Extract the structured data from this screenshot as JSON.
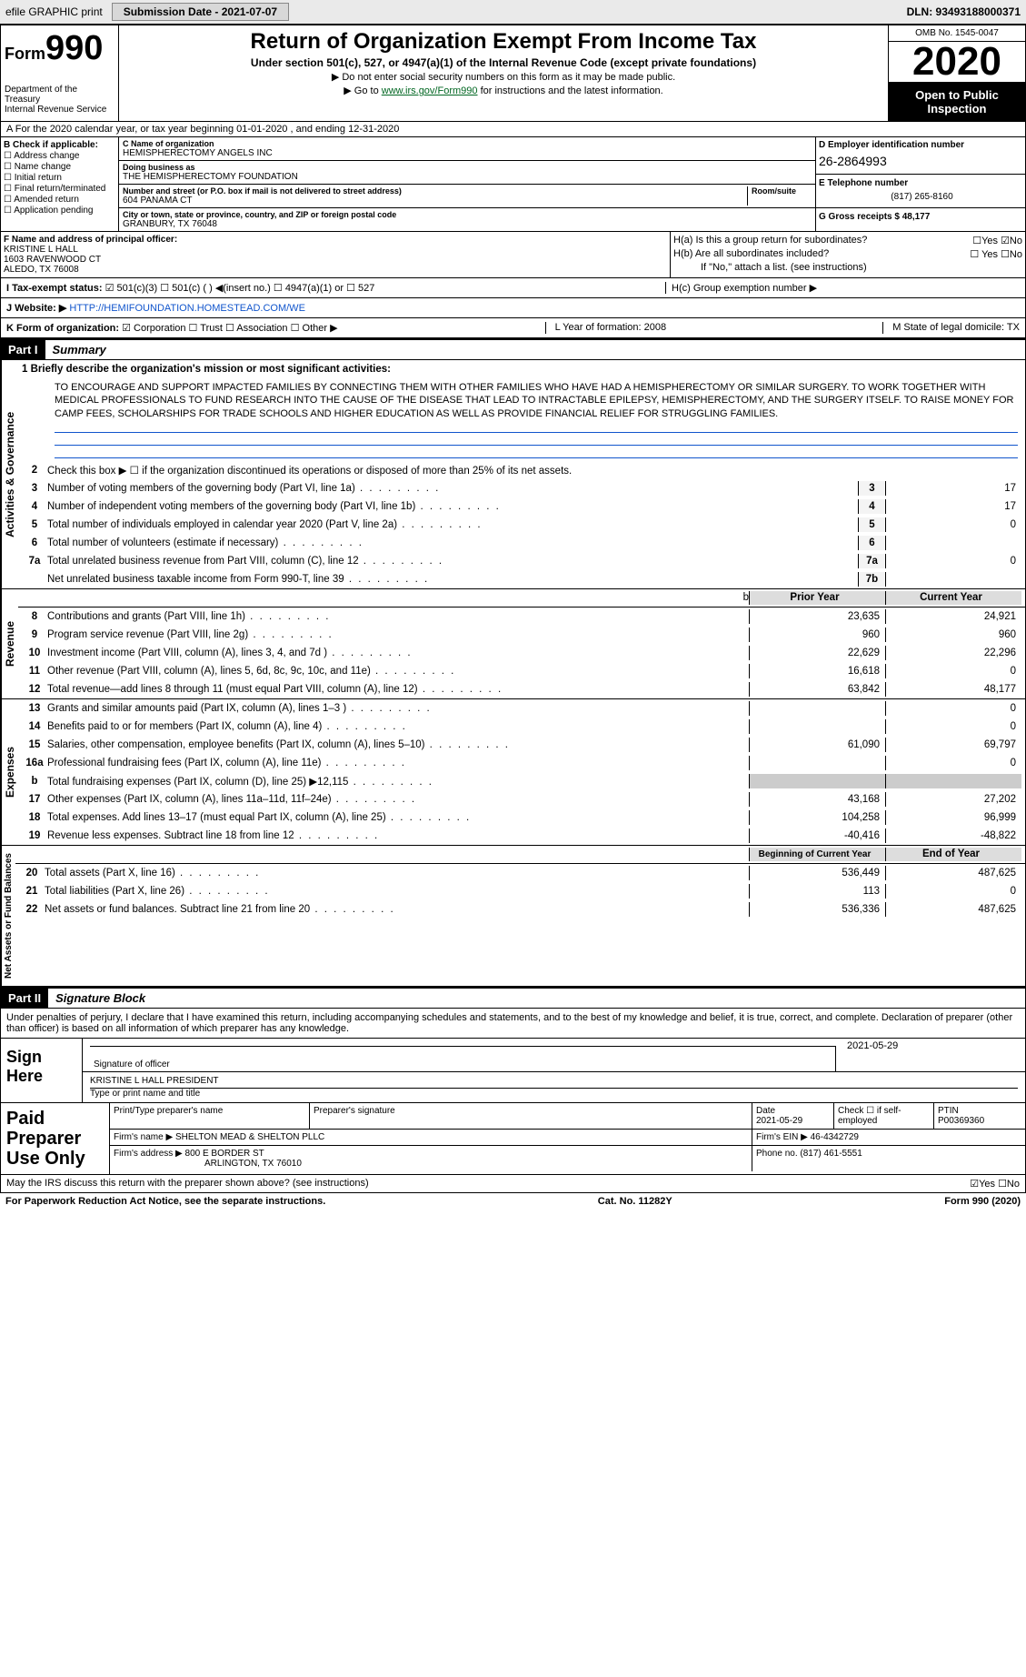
{
  "meta": {
    "top_efile": "efile GRAPHIC print",
    "submission_date_label": "Submission Date - 2021-07-07",
    "dln": "DLN: 93493188000371",
    "form_word": "Form",
    "form_num": "990",
    "dept": "Department of the Treasury",
    "irs": "Internal Revenue Service",
    "title": "Return of Organization Exempt From Income Tax",
    "subtitle": "Under section 501(c), 527, or 4947(a)(1) of the Internal Revenue Code (except private foundations)",
    "note1": "▶ Do not enter social security numbers on this form as it may be made public.",
    "note2_pre": "▶ Go to ",
    "note2_link": "www.irs.gov/Form990",
    "note2_post": " for instructions and the latest information.",
    "omb": "OMB No. 1545-0047",
    "year": "2020",
    "open_public": "Open to Public Inspection"
  },
  "rowA": "A For the 2020 calendar year, or tax year beginning 01-01-2020   , and ending 12-31-2020",
  "B": {
    "header": "B Check if applicable:",
    "items": [
      "☐ Address change",
      "☐ Name change",
      "☐ Initial return",
      "☐ Final return/terminated",
      "☐ Amended return",
      "☐ Application pending"
    ]
  },
  "C": {
    "name_label": "C Name of organization",
    "name": "HEMISPHERECTOMY ANGELS INC",
    "dba_label": "Doing business as",
    "dba": "THE HEMISPHERECTOMY FOUNDATION",
    "street_label": "Number and street (or P.O. box if mail is not delivered to street address)",
    "room_label": "Room/suite",
    "street": "604 PANAMA CT",
    "city_label": "City or town, state or province, country, and ZIP or foreign postal code",
    "city": "GRANBURY, TX  76048"
  },
  "D": {
    "label": "D Employer identification number",
    "value": "26-2864993"
  },
  "E": {
    "label": "E Telephone number",
    "value": "(817) 265-8160"
  },
  "G": {
    "label": "G Gross receipts $ 48,177"
  },
  "F": {
    "label": "F Name and address of principal officer:",
    "name": "KRISTINE L HALL",
    "addr1": "1603 RAVENWOOD CT",
    "addr2": "ALEDO, TX  76008"
  },
  "H": {
    "a_label": "H(a)  Is this a group return for subordinates?",
    "a_val": "☐Yes  ☑No",
    "b_label": "H(b)  Are all subordinates included?",
    "b_val": "☐ Yes ☐No",
    "b_note": "If \"No,\" attach a list. (see instructions)",
    "c_label": "H(c)  Group exemption number ▶"
  },
  "I": {
    "prefix": "I   Tax-exempt status:",
    "opts": "☑ 501(c)(3)    ☐ 501(c) (  ) ◀(insert no.)    ☐ 4947(a)(1) or   ☐ 527"
  },
  "J": {
    "label": "J   Website: ▶",
    "value": "HTTP://HEMIFOUNDATION.HOMESTEAD.COM/WE"
  },
  "K": {
    "label": "K Form of organization:",
    "opts": "☑ Corporation  ☐ Trust  ☐ Association  ☐ Other ▶"
  },
  "L": "L Year of formation: 2008",
  "M": "M State of legal domicile: TX",
  "partI": {
    "hdr": "Part I",
    "title": "Summary",
    "side1": "Activities & Governance",
    "side2": "Revenue",
    "side3": "Expenses",
    "side4": "Net Assets or Fund Balances",
    "line1_label": "1   Briefly describe the organization's mission or most significant activities:",
    "mission": "TO ENCOURAGE AND SUPPORT IMPACTED FAMILIES BY CONNECTING THEM WITH OTHER FAMILIES WHO HAVE HAD A HEMISPHERECTOMY OR SIMILAR SURGERY. TO WORK TOGETHER WITH MEDICAL PROFESSIONALS TO FUND RESEARCH INTO THE CAUSE OF THE DISEASE THAT LEAD TO INTRACTABLE EPILEPSY, HEMISPHERECTOMY, AND THE SURGERY ITSELF. TO RAISE MONEY FOR CAMP FEES, SCHOLARSHIPS FOR TRADE SCHOOLS AND HIGHER EDUCATION AS WELL AS PROVIDE FINANCIAL RELIEF FOR STRUGGLING FAMILIES.",
    "line2": "Check this box ▶ ☐ if the organization discontinued its operations or disposed of more than 25% of its net assets.",
    "gov_lines": [
      {
        "n": "3",
        "t": "Number of voting members of the governing body (Part VI, line 1a)",
        "box": "3",
        "v": "17"
      },
      {
        "n": "4",
        "t": "Number of independent voting members of the governing body (Part VI, line 1b)",
        "box": "4",
        "v": "17"
      },
      {
        "n": "5",
        "t": "Total number of individuals employed in calendar year 2020 (Part V, line 2a)",
        "box": "5",
        "v": "0"
      },
      {
        "n": "6",
        "t": "Total number of volunteers (estimate if necessary)",
        "box": "6",
        "v": ""
      },
      {
        "n": "7a",
        "t": "Total unrelated business revenue from Part VIII, column (C), line 12",
        "box": "7a",
        "v": "0"
      },
      {
        "n": "",
        "t": "Net unrelated business taxable income from Form 990-T, line 39",
        "box": "7b",
        "v": ""
      }
    ],
    "col_hdr_prior": "Prior Year",
    "col_hdr_curr": "Current Year",
    "rev_lines": [
      {
        "n": "8",
        "t": "Contributions and grants (Part VIII, line 1h)",
        "p": "23,635",
        "c": "24,921"
      },
      {
        "n": "9",
        "t": "Program service revenue (Part VIII, line 2g)",
        "p": "960",
        "c": "960"
      },
      {
        "n": "10",
        "t": "Investment income (Part VIII, column (A), lines 3, 4, and 7d )",
        "p": "22,629",
        "c": "22,296"
      },
      {
        "n": "11",
        "t": "Other revenue (Part VIII, column (A), lines 5, 6d, 8c, 9c, 10c, and 11e)",
        "p": "16,618",
        "c": "0"
      },
      {
        "n": "12",
        "t": "Total revenue—add lines 8 through 11 (must equal Part VIII, column (A), line 12)",
        "p": "63,842",
        "c": "48,177"
      }
    ],
    "exp_lines": [
      {
        "n": "13",
        "t": "Grants and similar amounts paid (Part IX, column (A), lines 1–3 )",
        "p": "",
        "c": "0"
      },
      {
        "n": "14",
        "t": "Benefits paid to or for members (Part IX, column (A), line 4)",
        "p": "",
        "c": "0"
      },
      {
        "n": "15",
        "t": "Salaries, other compensation, employee benefits (Part IX, column (A), lines 5–10)",
        "p": "61,090",
        "c": "69,797"
      },
      {
        "n": "16a",
        "t": "Professional fundraising fees (Part IX, column (A), line 11e)",
        "p": "",
        "c": "0"
      },
      {
        "n": "b",
        "t": "Total fundraising expenses (Part IX, column (D), line 25) ▶12,115",
        "p": "grey",
        "c": "grey"
      },
      {
        "n": "17",
        "t": "Other expenses (Part IX, column (A), lines 11a–11d, 11f–24e)",
        "p": "43,168",
        "c": "27,202"
      },
      {
        "n": "18",
        "t": "Total expenses. Add lines 13–17 (must equal Part IX, column (A), line 25)",
        "p": "104,258",
        "c": "96,999"
      },
      {
        "n": "19",
        "t": "Revenue less expenses. Subtract line 18 from line 12",
        "p": "-40,416",
        "c": "-48,822"
      }
    ],
    "net_hdr_beg": "Beginning of Current Year",
    "net_hdr_end": "End of Year",
    "net_lines": [
      {
        "n": "20",
        "t": "Total assets (Part X, line 16)",
        "p": "536,449",
        "c": "487,625"
      },
      {
        "n": "21",
        "t": "Total liabilities (Part X, line 26)",
        "p": "113",
        "c": "0"
      },
      {
        "n": "22",
        "t": "Net assets or fund balances. Subtract line 21 from line 20",
        "p": "536,336",
        "c": "487,625"
      }
    ]
  },
  "partII": {
    "hdr": "Part II",
    "title": "Signature Block",
    "declaration": "Under penalties of perjury, I declare that I have examined this return, including accompanying schedules and statements, and to the best of my knowledge and belief, it is true, correct, and complete. Declaration of preparer (other than officer) is based on all information of which preparer has any knowledge.",
    "sign_here": "Sign Here",
    "sig_officer": "Signature of officer",
    "sig_date": "2021-05-29",
    "sig_name": "KRISTINE L HALL  PRESIDENT",
    "sig_type": "Type or print name and title",
    "paid": "Paid Preparer Use Only",
    "prep_name_label": "Print/Type preparer's name",
    "prep_sig_label": "Preparer's signature",
    "prep_date_label": "Date",
    "prep_date": "2021-05-29",
    "prep_self": "Check ☐ if self-employed",
    "ptin_label": "PTIN",
    "ptin": "P00369360",
    "firm_name_label": "Firm's name    ▶",
    "firm_name": "SHELTON MEAD & SHELTON PLLC",
    "firm_ein_label": "Firm's EIN ▶",
    "firm_ein": "46-4342729",
    "firm_addr_label": "Firm's address ▶",
    "firm_addr": "800 E BORDER ST",
    "firm_city": "ARLINGTON, TX  76010",
    "phone_label": "Phone no.",
    "phone": "(817) 461-5551",
    "discuss": "May the IRS discuss this return with the preparer shown above? (see instructions)",
    "discuss_val": "☑Yes  ☐No"
  },
  "footer": {
    "pra": "For Paperwork Reduction Act Notice, see the separate instructions.",
    "cat": "Cat. No. 11282Y",
    "form": "Form 990 (2020)"
  }
}
